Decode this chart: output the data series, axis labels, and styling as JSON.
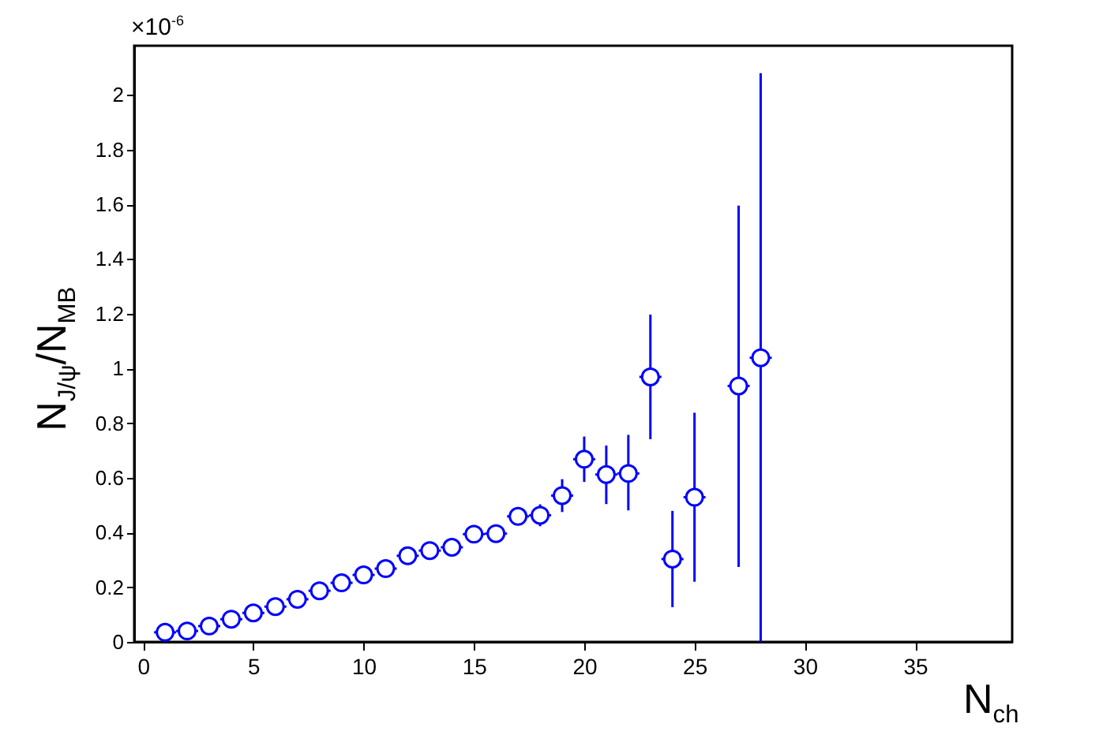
{
  "chart_data": {
    "type": "scatter",
    "xlabel": "N$_{ch}$",
    "ylabel": "N$_{J/ψ}$/N$_{MB}$",
    "annotations": [
      "×10$^{-6}$"
    ],
    "x": [
      1,
      2,
      3,
      4,
      5,
      6,
      7,
      8,
      9,
      10,
      11,
      12,
      13,
      14,
      15,
      16,
      17,
      18,
      19,
      20,
      21,
      22,
      23,
      24,
      25,
      27,
      28
    ],
    "series": [
      {
        "color": "#0000ff",
        "values": [
          0.035,
          0.04,
          0.058,
          0.083,
          0.106,
          0.129,
          0.156,
          0.187,
          0.216,
          0.245,
          0.268,
          0.315,
          0.334,
          0.346,
          0.394,
          0.396,
          0.459,
          0.463,
          0.535,
          0.668,
          0.612,
          0.616,
          0.969,
          0.303,
          0.529,
          0.936,
          1.039
        ],
        "errors": [
          null,
          null,
          null,
          null,
          null,
          null,
          null,
          null,
          null,
          null,
          null,
          null,
          null,
          null,
          null,
          null,
          0.03,
          0.04,
          [
            0.475,
            0.595
          ],
          [
            0.585,
            0.751
          ],
          [
            0.504,
            0.718
          ],
          [
            0.481,
            0.757
          ],
          [
            0.741,
            1.197
          ],
          [
            0.127,
            0.479
          ],
          [
            0.22,
            0.838
          ],
          [
            0.274,
            1.595
          ],
          [
            0,
            2.08
          ]
        ],
        "xerrors": [
          0.5,
          0.5,
          0.5,
          0.5,
          0.5,
          0.5,
          0.5,
          0.5,
          0.5,
          0.5,
          0.5,
          0.5,
          0.5,
          0.5,
          0.5,
          0.5,
          0.5,
          0.5,
          0.5,
          0.5,
          0.5,
          0.5,
          0.5,
          0.5,
          0.5,
          0.5,
          0.5
        ]
      }
    ],
    "marker": "circle",
    "xlim": [
      -0.4,
      39.4
    ],
    "ylim": [
      0,
      2.18
    ],
    "xticks": [
      0,
      5,
      10,
      15,
      20,
      25,
      30,
      35
    ],
    "yticks": [
      0,
      0.2,
      0.4,
      0.6,
      0.8,
      1,
      1.2,
      1.4,
      1.6,
      1.8,
      2
    ]
  }
}
